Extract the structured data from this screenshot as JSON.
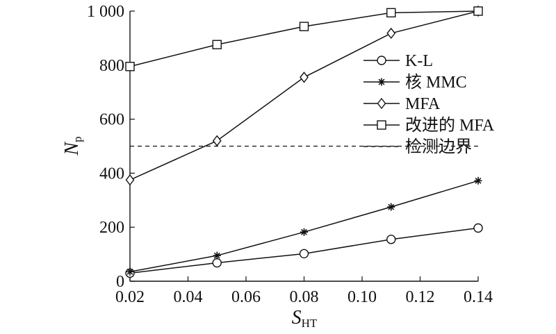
{
  "chart_data": {
    "type": "line",
    "x": [
      0.02,
      0.05,
      0.08,
      0.11,
      0.14
    ],
    "xlim": [
      0.02,
      0.14
    ],
    "ylim": [
      0,
      1000
    ],
    "xticks": [
      0.02,
      0.04,
      0.06,
      0.08,
      0.1,
      0.12,
      0.14
    ],
    "xtick_labels": [
      "0.02",
      "0.04",
      "0.06",
      "0.08",
      "0.10",
      "0.12",
      "0.14"
    ],
    "yticks": [
      0,
      200,
      400,
      600,
      800,
      1000
    ],
    "ytick_labels": [
      "0",
      "200",
      "400",
      "600",
      "800",
      "1 000"
    ],
    "xlabel": {
      "main": "S",
      "sub": "HT"
    },
    "ylabel": {
      "main": "N",
      "sub": "p"
    },
    "grid": false,
    "legend_position": "right",
    "series": [
      {
        "name": "K-L",
        "marker": "circle",
        "style": "solid",
        "values": [
          30,
          68,
          102,
          155,
          197
        ]
      },
      {
        "name": "核 MMC",
        "marker": "asterisk",
        "style": "solid",
        "values": [
          35,
          95,
          182,
          275,
          372
        ]
      },
      {
        "name": "MFA",
        "marker": "diamond",
        "style": "solid",
        "values": [
          375,
          520,
          755,
          918,
          1000
        ]
      },
      {
        "name": "改进的 MFA",
        "marker": "square",
        "style": "solid",
        "values": [
          795,
          876,
          943,
          994,
          1000
        ]
      }
    ],
    "threshold": {
      "name": "检测边界",
      "style": "dashed",
      "value": 500
    }
  }
}
